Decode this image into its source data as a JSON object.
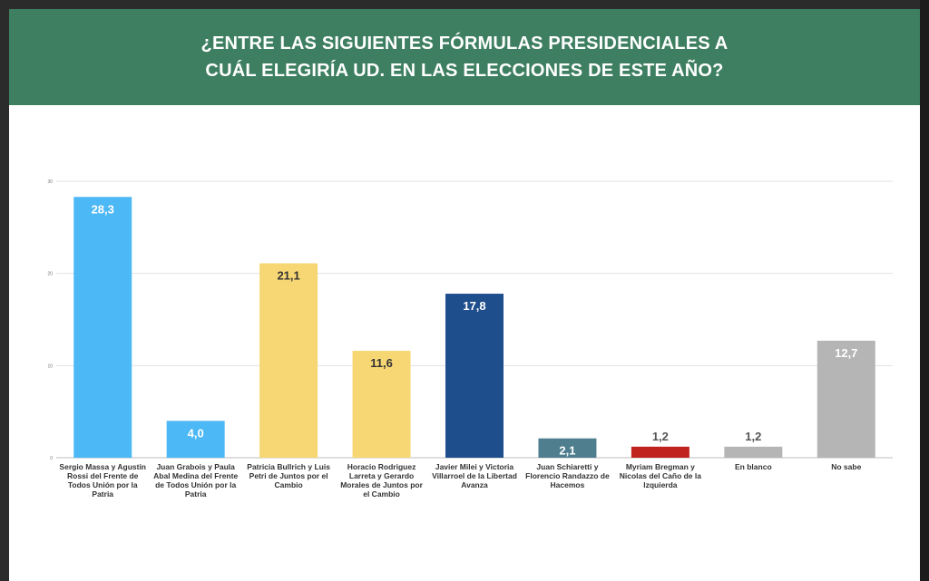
{
  "header": {
    "line1": "¿ENTRE LAS SIGUIENTES FÓRMULAS PRESIDENCIALES A",
    "line2": "CUÁL ELEGIRÍA UD. EN LAS ELECCIONES DE ESTE AÑO?"
  },
  "chart_data": {
    "type": "bar",
    "title": "¿ENTRE LAS SIGUIENTES FÓRMULAS PRESIDENCIALES A CUÁL ELEGIRÍA UD. EN LAS ELECCIONES DE ESTE AÑO?",
    "ylim": [
      0,
      30
    ],
    "yticks": [
      "0",
      "10",
      "20",
      "30"
    ],
    "grid": true,
    "categories": [
      [
        "Sergio Massa y Agustin",
        "Rossi del Frente de",
        "Todos Unión por la",
        "Patria"
      ],
      [
        "Juan Grabois y Paula",
        "Abal Medina del Frente",
        "de Todos Unión por la",
        "Patria"
      ],
      [
        "Patricia Bullrich y Luis",
        "Petri de Juntos por el",
        "Cambio"
      ],
      [
        "Horacio Rodriguez",
        "Larreta y Gerardo",
        "Morales de Juntos por",
        "el Cambio"
      ],
      [
        "Javier Milei y Victoria",
        "Villarroel de la Libertad",
        "Avanza"
      ],
      [
        "Juan Schiaretti y",
        "Florencio Randazzo de",
        "Hacemos"
      ],
      [
        "Myriam Bregman y",
        "Nicolas del Caño de la",
        "Izquierda"
      ],
      [
        "En blanco"
      ],
      [
        "No sabe"
      ]
    ],
    "values": [
      28.3,
      4.0,
      21.1,
      11.6,
      17.8,
      2.1,
      1.2,
      1.2,
      12.7
    ],
    "labels": [
      "28,3",
      "4,0",
      "21,1",
      "11,6",
      "17,8",
      "2,1",
      "1,2",
      "1,2",
      "12,7"
    ],
    "colors": [
      "#4cb8f5",
      "#4cb8f5",
      "#f7d774",
      "#f7d774",
      "#1f4e8c",
      "#4f7f8f",
      "#c0231d",
      "#b5b5b5",
      "#b5b5b5"
    ],
    "label_inside": [
      true,
      true,
      true,
      true,
      true,
      true,
      false,
      false,
      true
    ],
    "label_colors": [
      "#ffffff",
      "#ffffff",
      "#333333",
      "#333333",
      "#ffffff",
      "#ffffff",
      "#555555",
      "#555555",
      "#ffffff"
    ]
  }
}
